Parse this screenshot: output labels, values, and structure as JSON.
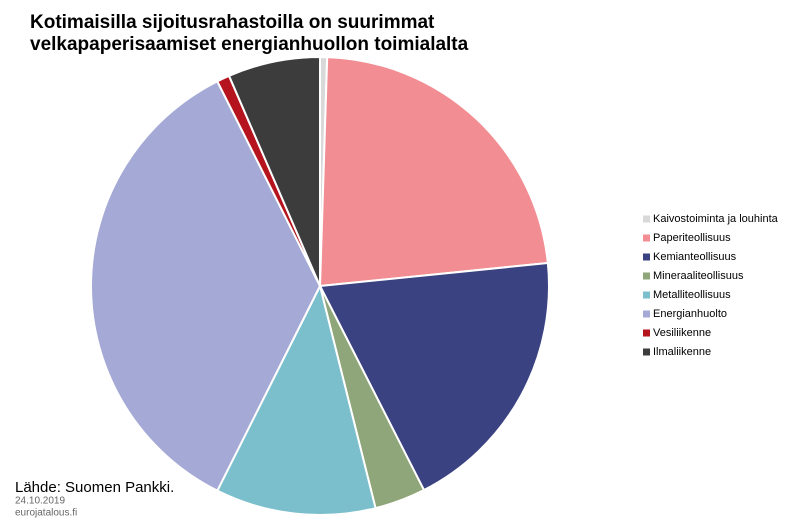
{
  "chart_data": {
    "type": "pie",
    "title": "Kotimaisilla sijoitusrahastoilla on suurimmat velkapaperisaamiset energianhuollon toimialalta",
    "categories": [
      "Kaivostoiminta ja louhinta",
      "Paperiteollisuus",
      "Kemianteollisuus",
      "Mineraaliteollisuus",
      "Metalliteollisuus",
      "Energianhuolto",
      "Vesiliikenne",
      "Ilmaliikenne"
    ],
    "values": [
      0.5,
      22.9,
      19.1,
      3.6,
      11.3,
      35.2,
      0.9,
      6.5
    ],
    "colors": [
      "#d9d9d9",
      "#f28e93",
      "#3b4281",
      "#8fa57a",
      "#7bbfcc",
      "#a5a9d5",
      "#b5141e",
      "#3c3c3c"
    ],
    "legend": "right",
    "source": "Lähde: Suomen Pankki.",
    "date": "24.10.2019",
    "site": "eurojatalous.fi"
  }
}
